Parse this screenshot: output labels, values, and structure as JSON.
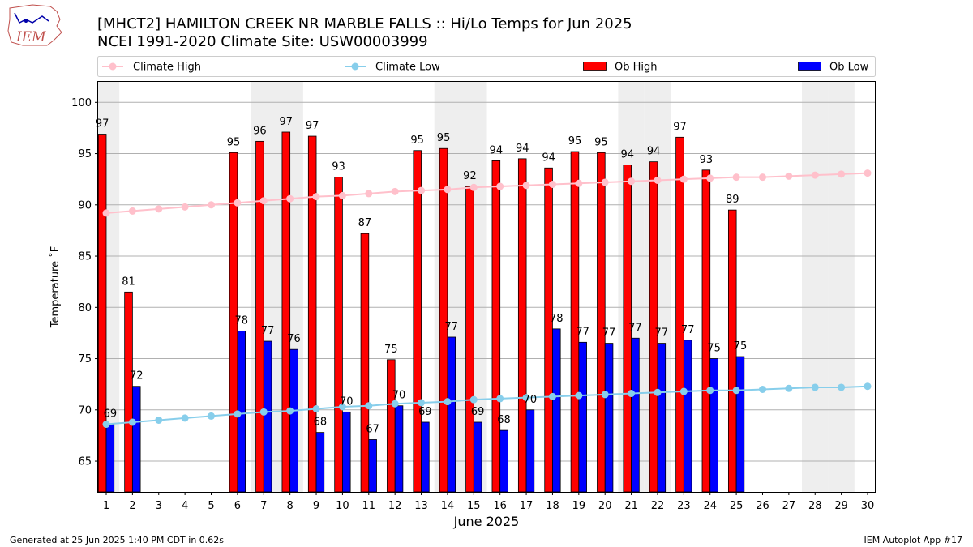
{
  "logo": {
    "text": "IEM"
  },
  "header": {
    "title": "[MHCT2] HAMILTON CREEK NR MARBLE FALLS :: Hi/Lo Temps for Jun 2025",
    "subtitle": "NCEI 1991-2020 Climate Site: USW00003999"
  },
  "footer": {
    "generated": "Generated at 25 Jun 2025 1:40 PM CDT in 0.62s",
    "app": "IEM Autoplot App #17"
  },
  "colors": {
    "ob_high": "#ff0000",
    "ob_low": "#0000ff",
    "climate_high": "#ffc0cb",
    "climate_low": "#87ceeb",
    "weekend_shade": "#eeeeee",
    "grid": "#b0b0b0"
  },
  "chart_data": {
    "type": "bar",
    "xlabel": "June 2025",
    "ylabel": "Temperature ˚F",
    "ylim": [
      62,
      102
    ],
    "yticks": [
      65,
      70,
      75,
      80,
      85,
      90,
      95,
      100
    ],
    "grid": true,
    "legend_position": "top",
    "categories": [
      1,
      2,
      3,
      4,
      5,
      6,
      7,
      8,
      9,
      10,
      11,
      12,
      13,
      14,
      15,
      16,
      17,
      18,
      19,
      20,
      21,
      22,
      23,
      24,
      25,
      26,
      27,
      28,
      29,
      30
    ],
    "weekend_days": [
      1,
      7,
      8,
      14,
      15,
      21,
      22,
      28,
      29
    ],
    "series": [
      {
        "name": "Climate High",
        "kind": "line",
        "values": [
          89.2,
          89.4,
          89.6,
          89.8,
          90.0,
          90.2,
          90.4,
          90.6,
          90.8,
          90.9,
          91.1,
          91.3,
          91.4,
          91.5,
          91.7,
          91.8,
          91.9,
          92.0,
          92.1,
          92.2,
          92.3,
          92.4,
          92.5,
          92.6,
          92.7,
          92.7,
          92.8,
          92.9,
          93.0,
          93.1
        ]
      },
      {
        "name": "Climate Low",
        "kind": "line",
        "values": [
          68.6,
          68.8,
          69.0,
          69.2,
          69.4,
          69.6,
          69.8,
          69.9,
          70.1,
          70.3,
          70.4,
          70.6,
          70.7,
          70.8,
          71.0,
          71.1,
          71.2,
          71.3,
          71.4,
          71.5,
          71.6,
          71.7,
          71.8,
          71.9,
          71.9,
          72.0,
          72.1,
          72.2,
          72.2,
          72.3
        ]
      },
      {
        "name": "Ob High",
        "kind": "bar",
        "values": [
          96.9,
          81.5,
          null,
          null,
          null,
          95.1,
          96.2,
          97.1,
          96.7,
          92.7,
          87.2,
          74.9,
          95.3,
          95.5,
          91.8,
          94.3,
          94.5,
          93.6,
          95.2,
          95.1,
          93.9,
          94.2,
          96.6,
          93.4,
          89.5,
          null,
          null,
          null,
          null,
          null
        ],
        "labels": [
          "97",
          "81",
          "",
          "",
          "",
          "95",
          "96",
          "97",
          "97",
          "93",
          "87",
          "75",
          "95",
          "95",
          "92",
          "94",
          "94",
          "94",
          "95",
          "95",
          "94",
          "94",
          "97",
          "93",
          "89",
          "",
          "",
          "",
          "",
          ""
        ]
      },
      {
        "name": "Ob Low",
        "kind": "bar",
        "values": [
          68.6,
          72.3,
          null,
          null,
          null,
          77.7,
          76.7,
          75.9,
          67.8,
          69.8,
          67.1,
          70.4,
          68.8,
          77.1,
          68.8,
          68.0,
          70.0,
          77.9,
          76.6,
          76.5,
          77.0,
          76.5,
          76.8,
          75.0,
          75.2,
          null,
          null,
          null,
          null,
          null
        ],
        "labels": [
          "69",
          "72",
          "",
          "",
          "",
          "78",
          "77",
          "76",
          "68",
          "70",
          "67",
          "70",
          "69",
          "77",
          "69",
          "68",
          "70",
          "78",
          "77",
          "77",
          "77",
          "77",
          "77",
          "75",
          "75",
          "",
          "",
          "",
          "",
          ""
        ]
      }
    ]
  }
}
